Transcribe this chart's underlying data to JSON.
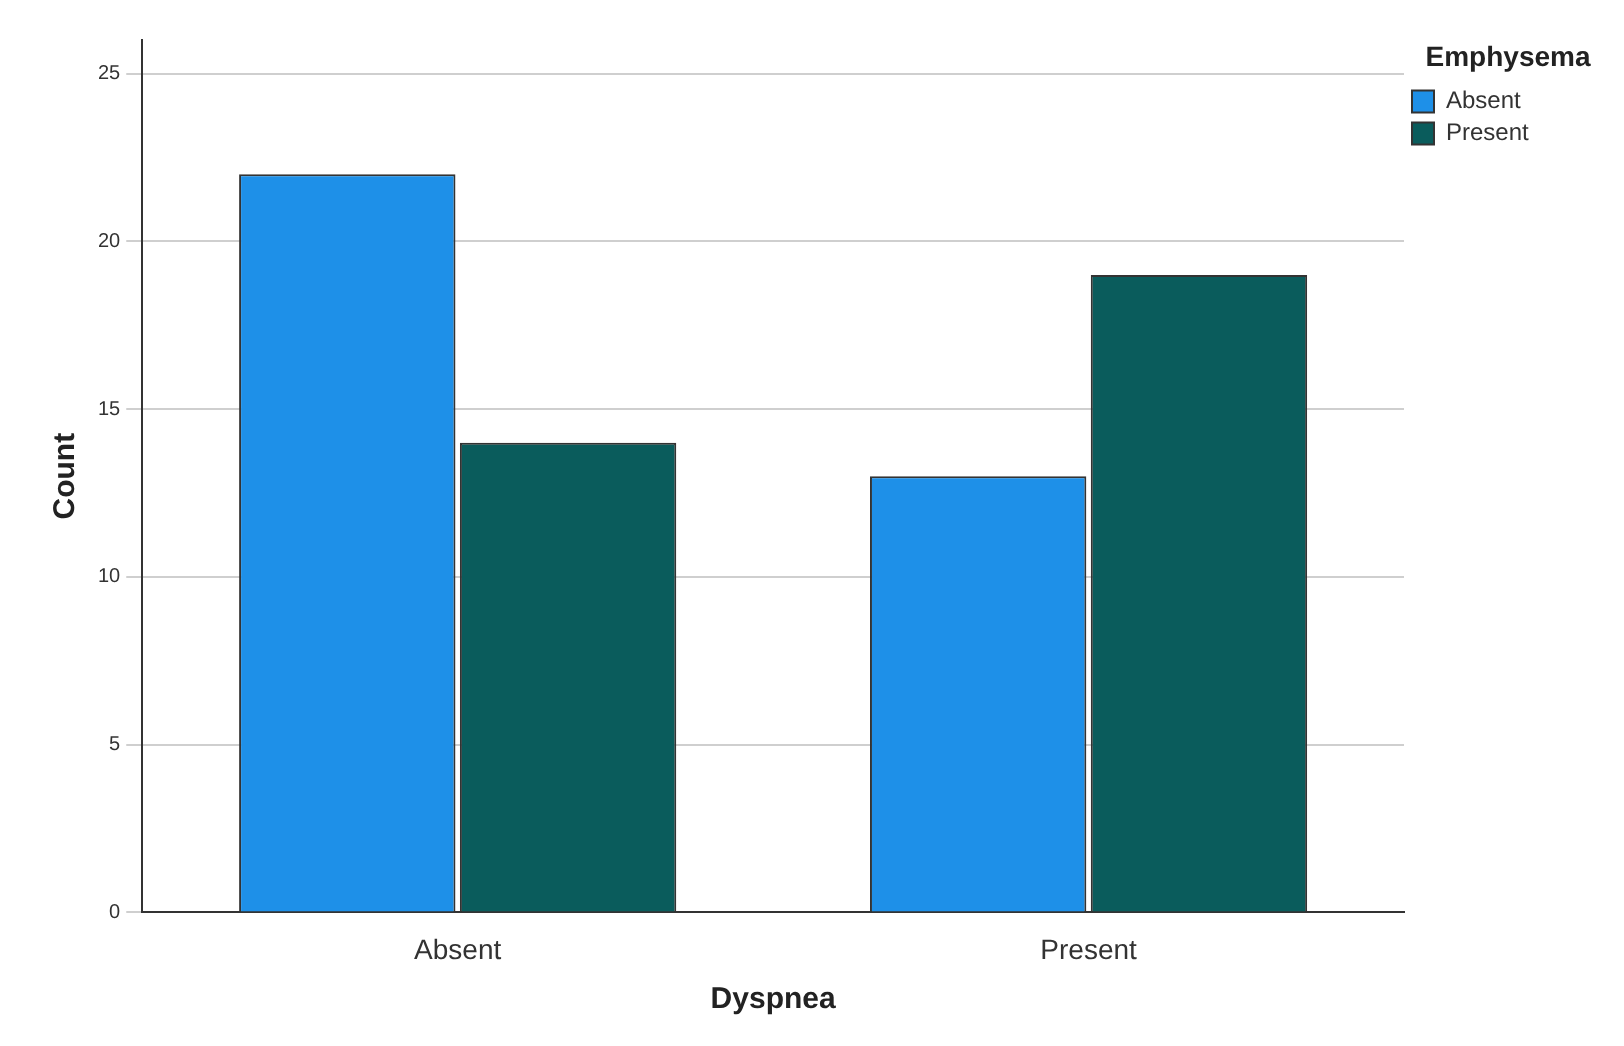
{
  "chart_data": {
    "type": "bar",
    "xlabel": "Dyspnea",
    "ylabel": "Count",
    "legend_title": "Emphysema",
    "categories": [
      "Absent",
      "Present"
    ],
    "series": [
      {
        "name": "Absent",
        "color": "#1e90e8",
        "values": [
          22,
          13
        ]
      },
      {
        "name": "Present",
        "color": "#0a5c5c",
        "values": [
          14,
          19
        ]
      }
    ],
    "ylim": [
      0,
      26
    ],
    "yticks": [
      0,
      5,
      10,
      15,
      20,
      25
    ],
    "grid": "y",
    "legend": "top right"
  }
}
